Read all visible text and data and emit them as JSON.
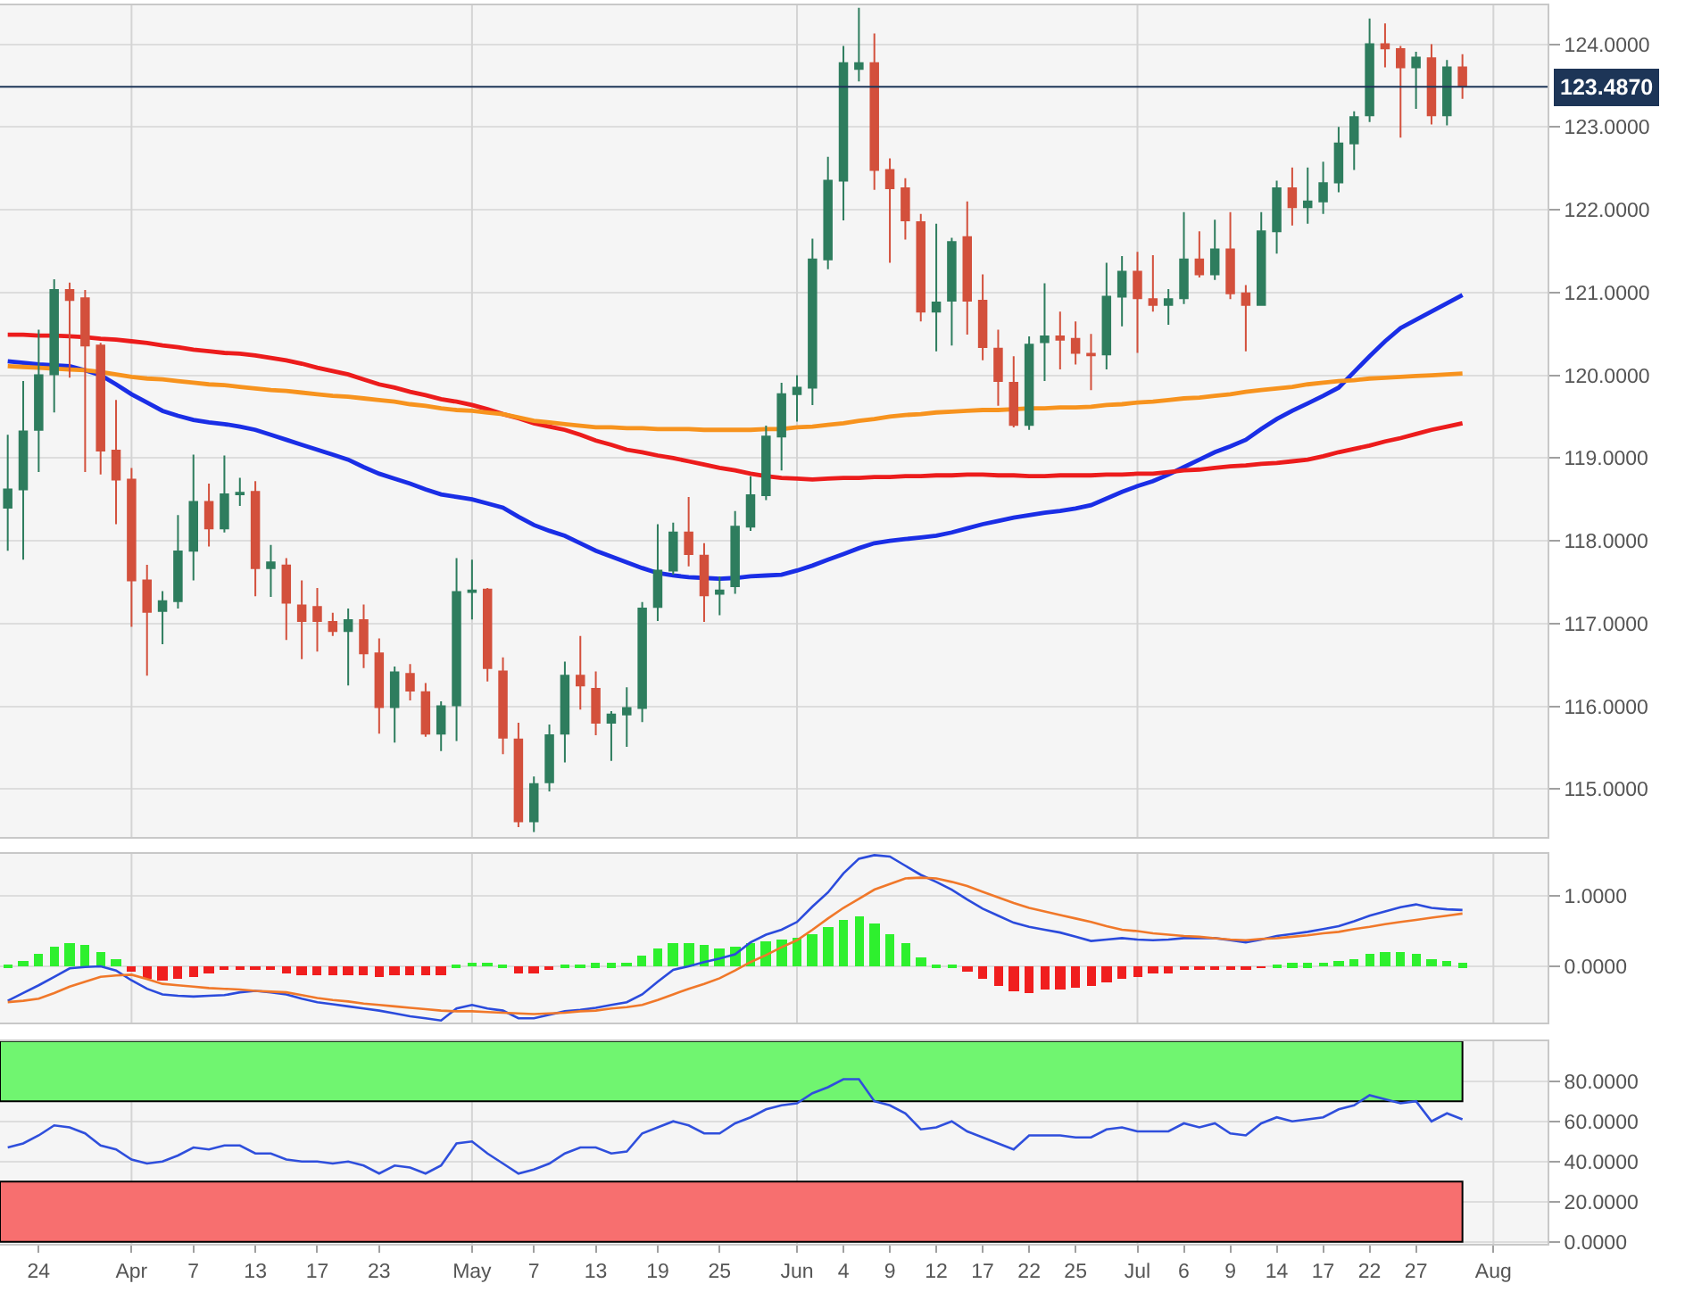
{
  "chart_data": [
    {
      "type": "candlestick",
      "categories": [
        null,
        null,
        "24",
        null,
        null,
        null,
        null,
        null,
        "Apr",
        null,
        null,
        null,
        "7",
        null,
        null,
        null,
        "13",
        null,
        null,
        null,
        "17",
        null,
        null,
        null,
        "23",
        null,
        null,
        null,
        null,
        null,
        "May",
        null,
        null,
        null,
        "7",
        null,
        null,
        null,
        "13",
        null,
        null,
        null,
        "19",
        null,
        null,
        null,
        "25",
        null,
        null,
        null,
        null,
        "Jun",
        null,
        null,
        "4",
        null,
        null,
        "9",
        null,
        null,
        "12",
        null,
        null,
        "17",
        null,
        null,
        "22",
        null,
        null,
        "25",
        null,
        null,
        null,
        "Jul",
        null,
        null,
        "6",
        null,
        null,
        "9",
        null,
        null,
        "14",
        null,
        null,
        "17",
        null,
        null,
        "22",
        null,
        null,
        "27",
        null,
        null,
        null,
        null,
        "Aug",
        null,
        null,
        null
      ],
      "ohlc": [
        [
          118.4,
          119.28,
          117.88,
          118.62
        ],
        [
          118.62,
          119.93,
          117.77,
          119.32
        ],
        [
          119.34,
          120.55,
          118.83,
          120.0
        ],
        [
          120.01,
          121.16,
          119.55,
          121.03
        ],
        [
          121.03,
          121.12,
          119.97,
          120.91
        ],
        [
          120.93,
          121.03,
          118.83,
          120.36
        ],
        [
          120.36,
          120.39,
          118.8,
          119.09
        ],
        [
          119.09,
          119.7,
          118.2,
          118.74
        ],
        [
          118.74,
          118.88,
          116.96,
          117.52
        ],
        [
          117.52,
          117.71,
          116.37,
          117.14
        ],
        [
          117.15,
          117.39,
          116.75,
          117.27
        ],
        [
          117.27,
          118.31,
          117.18,
          117.87
        ],
        [
          117.88,
          119.04,
          117.52,
          118.47
        ],
        [
          118.47,
          118.69,
          117.93,
          118.15
        ],
        [
          118.15,
          119.03,
          118.1,
          118.56
        ],
        [
          118.56,
          118.76,
          118.42,
          118.58
        ],
        [
          118.59,
          118.72,
          117.33,
          117.67
        ],
        [
          117.67,
          117.95,
          117.32,
          117.74
        ],
        [
          117.7,
          117.79,
          116.8,
          117.25
        ],
        [
          117.22,
          117.52,
          116.57,
          117.03
        ],
        [
          117.2,
          117.43,
          116.66,
          117.03
        ],
        [
          117.02,
          117.13,
          116.85,
          116.91
        ],
        [
          116.91,
          117.18,
          116.25,
          117.04
        ],
        [
          117.04,
          117.23,
          116.46,
          116.64
        ],
        [
          116.64,
          116.82,
          115.67,
          115.99
        ],
        [
          115.99,
          116.48,
          115.56,
          116.41
        ],
        [
          116.39,
          116.51,
          116.07,
          116.19
        ],
        [
          116.17,
          116.28,
          115.63,
          115.67
        ],
        [
          115.67,
          116.06,
          115.46,
          116.0
        ],
        [
          116.01,
          117.79,
          115.58,
          117.38
        ],
        [
          117.38,
          117.77,
          117.05,
          117.4
        ],
        [
          117.41,
          117.43,
          116.3,
          116.46
        ],
        [
          116.42,
          116.59,
          115.42,
          115.62
        ],
        [
          115.6,
          115.8,
          114.54,
          114.61
        ],
        [
          114.61,
          115.15,
          114.48,
          115.06
        ],
        [
          115.08,
          115.78,
          114.97,
          115.65
        ],
        [
          115.67,
          116.54,
          115.32,
          116.37
        ],
        [
          116.37,
          116.85,
          115.96,
          116.25
        ],
        [
          116.21,
          116.42,
          115.65,
          115.8
        ],
        [
          115.8,
          115.94,
          115.34,
          115.9
        ],
        [
          115.9,
          116.23,
          115.51,
          115.98
        ],
        [
          115.98,
          117.26,
          115.81,
          117.18
        ],
        [
          117.2,
          118.2,
          117.03,
          117.64
        ],
        [
          117.64,
          118.22,
          117.59,
          118.1
        ],
        [
          118.1,
          118.53,
          117.69,
          117.84
        ],
        [
          117.82,
          117.97,
          117.02,
          117.34
        ],
        [
          117.36,
          117.57,
          117.1,
          117.4
        ],
        [
          117.45,
          118.36,
          117.36,
          118.17
        ],
        [
          118.17,
          118.78,
          118.12,
          118.55
        ],
        [
          118.55,
          119.39,
          118.49,
          119.26
        ],
        [
          119.26,
          119.91,
          118.85,
          119.77
        ],
        [
          119.77,
          120.0,
          119.44,
          119.85
        ],
        [
          119.85,
          121.65,
          119.64,
          121.4
        ],
        [
          121.4,
          122.64,
          121.28,
          122.35
        ],
        [
          122.35,
          123.98,
          121.87,
          123.77
        ],
        [
          123.7,
          124.44,
          123.55,
          123.77
        ],
        [
          123.77,
          124.13,
          122.24,
          122.48
        ],
        [
          122.48,
          122.62,
          121.36,
          122.26
        ],
        [
          122.26,
          122.38,
          121.64,
          121.87
        ],
        [
          121.85,
          121.95,
          120.65,
          120.77
        ],
        [
          120.77,
          121.83,
          120.29,
          120.88
        ],
        [
          120.9,
          121.66,
          120.36,
          121.61
        ],
        [
          121.67,
          122.1,
          120.49,
          120.9
        ],
        [
          120.9,
          121.22,
          120.18,
          120.34
        ],
        [
          120.32,
          120.55,
          119.63,
          119.93
        ],
        [
          119.91,
          120.23,
          119.37,
          119.4
        ],
        [
          119.4,
          120.47,
          119.34,
          120.37
        ],
        [
          120.4,
          121.11,
          119.93,
          120.47
        ],
        [
          120.47,
          120.77,
          120.07,
          120.43
        ],
        [
          120.44,
          120.65,
          120.13,
          120.27
        ],
        [
          120.26,
          120.5,
          119.82,
          120.24
        ],
        [
          120.25,
          121.36,
          120.07,
          120.95
        ],
        [
          120.95,
          121.44,
          120.59,
          121.25
        ],
        [
          121.25,
          121.49,
          120.27,
          120.93
        ],
        [
          120.92,
          121.45,
          120.77,
          120.85
        ],
        [
          120.85,
          121.04,
          120.61,
          120.92
        ],
        [
          120.93,
          121.97,
          120.86,
          121.4
        ],
        [
          121.4,
          121.74,
          121.18,
          121.22
        ],
        [
          121.22,
          121.88,
          121.15,
          121.52
        ],
        [
          121.52,
          121.97,
          120.92,
          120.99
        ],
        [
          120.99,
          121.09,
          120.29,
          120.85
        ],
        [
          120.85,
          121.97,
          120.85,
          121.74
        ],
        [
          121.74,
          122.35,
          121.47,
          122.26
        ],
        [
          122.26,
          122.51,
          121.81,
          122.03
        ],
        [
          122.03,
          122.51,
          121.83,
          122.1
        ],
        [
          122.1,
          122.58,
          121.95,
          122.32
        ],
        [
          122.33,
          123.0,
          122.21,
          122.8
        ],
        [
          122.8,
          123.19,
          122.48,
          123.12
        ],
        [
          123.14,
          124.31,
          123.06,
          124.0
        ],
        [
          124.0,
          124.25,
          123.72,
          123.95
        ],
        [
          123.94,
          123.98,
          122.87,
          123.72
        ],
        [
          123.72,
          123.91,
          123.22,
          123.84
        ],
        [
          123.83,
          124.0,
          123.03,
          123.14
        ],
        [
          123.14,
          123.81,
          123.02,
          123.72
        ],
        [
          123.72,
          123.88,
          123.34,
          123.49
        ],
        null,
        null,
        null,
        null,
        null
      ],
      "colors": [
        "#2e7d5e",
        "#2e7d5e",
        "#2e7d5e",
        "#2e7d5e",
        "#d3503c",
        "#d3503c",
        "#d3503c",
        "#d3503c",
        "#d3503c",
        "#d3503c",
        "#2e7d5e",
        "#2e7d5e",
        "#2e7d5e",
        "#d3503c",
        "#2e7d5e",
        "#2e7d5e",
        "#d3503c",
        "#2e7d5e",
        "#d3503c",
        "#d3503c",
        "#d3503c",
        "#d3503c",
        "#2e7d5e",
        "#d3503c",
        "#d3503c",
        "#2e7d5e",
        "#d3503c",
        "#d3503c",
        "#2e7d5e",
        "#2e7d5e",
        "#2e7d5e",
        "#d3503c",
        "#d3503c",
        "#d3503c",
        "#2e7d5e",
        "#2e7d5e",
        "#2e7d5e",
        "#d3503c",
        "#d3503c",
        "#2e7d5e",
        "#2e7d5e",
        "#2e7d5e",
        "#2e7d5e",
        "#2e7d5e",
        "#d3503c",
        "#d3503c",
        "#2e7d5e",
        "#2e7d5e",
        "#2e7d5e",
        "#2e7d5e",
        "#2e7d5e",
        "#2e7d5e",
        "#2e7d5e",
        "#2e7d5e",
        "#2e7d5e",
        "#2e7d5e",
        "#d3503c",
        "#d3503c",
        "#d3503c",
        "#d3503c",
        "#2e7d5e",
        "#2e7d5e",
        "#d3503c",
        "#d3503c",
        "#d3503c",
        "#d3503c",
        "#2e7d5e",
        "#2e7d5e",
        "#d3503c",
        "#d3503c",
        "#d3503c",
        "#2e7d5e",
        "#2e7d5e",
        "#d3503c",
        "#d3503c",
        "#2e7d5e",
        "#2e7d5e",
        "#d3503c",
        "#2e7d5e",
        "#d3503c",
        "#d3503c",
        "#2e7d5e",
        "#2e7d5e",
        "#d3503c",
        "#2e7d5e",
        "#2e7d5e",
        "#2e7d5e",
        "#2e7d5e",
        "#2e7d5e",
        "#d3503c",
        "#d3503c",
        "#2e7d5e",
        "#d3503c",
        "#2e7d5e",
        "#d3503c",
        null,
        null,
        null,
        null,
        null
      ],
      "series": [
        {
          "type": "line",
          "color": "#1a2ee6",
          "values": [
            120.17,
            120.15,
            120.13,
            120.12,
            120.11,
            120.06,
            120.0,
            119.89,
            119.77,
            119.67,
            119.57,
            119.51,
            119.46,
            119.43,
            119.41,
            119.38,
            119.34,
            119.28,
            119.22,
            119.16,
            119.1,
            119.04,
            118.98,
            118.89,
            118.81,
            118.75,
            118.69,
            118.62,
            118.56,
            118.53,
            118.5,
            118.45,
            118.4,
            118.29,
            118.19,
            118.12,
            118.06,
            117.97,
            117.88,
            117.81,
            117.74,
            117.67,
            117.61,
            117.58,
            117.56,
            117.55,
            117.54,
            117.55,
            117.57,
            117.58,
            117.59,
            117.64,
            117.7,
            117.77,
            117.84,
            117.91,
            117.97,
            118.0,
            118.02,
            118.04,
            118.06,
            118.1,
            118.15,
            118.2,
            118.24,
            118.28,
            118.31,
            118.34,
            118.36,
            118.39,
            118.43,
            118.51,
            118.59,
            118.66,
            118.72,
            118.8,
            118.89,
            118.98,
            119.07,
            119.14,
            119.22,
            119.35,
            119.47,
            119.57,
            119.66,
            119.75,
            119.85,
            120.04,
            120.23,
            120.41,
            120.57,
            120.67,
            120.77,
            120.87,
            120.97,
            null,
            null,
            null,
            null,
            null
          ]
        },
        {
          "type": "line",
          "color": "#ec1c1c",
          "values": [
            120.49,
            120.49,
            120.48,
            120.48,
            120.47,
            120.46,
            120.44,
            120.43,
            120.41,
            120.39,
            120.36,
            120.34,
            120.31,
            120.29,
            120.27,
            120.26,
            120.24,
            120.21,
            120.18,
            120.14,
            120.09,
            120.05,
            120.01,
            119.95,
            119.89,
            119.85,
            119.8,
            119.76,
            119.71,
            119.68,
            119.64,
            119.59,
            119.53,
            119.48,
            119.42,
            119.38,
            119.34,
            119.28,
            119.21,
            119.16,
            119.1,
            119.07,
            119.03,
            119.0,
            118.96,
            118.92,
            118.88,
            118.85,
            118.81,
            118.78,
            118.76,
            118.75,
            118.74,
            118.75,
            118.76,
            118.76,
            118.77,
            118.77,
            118.78,
            118.78,
            118.79,
            118.79,
            118.8,
            118.8,
            118.79,
            118.79,
            118.78,
            118.78,
            118.79,
            118.79,
            118.79,
            118.8,
            118.8,
            118.81,
            118.81,
            118.83,
            118.85,
            118.86,
            118.88,
            118.9,
            118.91,
            118.93,
            118.94,
            118.96,
            118.98,
            119.02,
            119.07,
            119.11,
            119.15,
            119.2,
            119.24,
            119.29,
            119.34,
            119.38,
            119.42,
            null,
            null,
            null,
            null,
            null
          ]
        },
        {
          "type": "line",
          "color": "#f7931e",
          "values": [
            120.11,
            120.1,
            120.09,
            120.08,
            120.07,
            120.06,
            120.04,
            120.01,
            119.98,
            119.96,
            119.95,
            119.93,
            119.91,
            119.89,
            119.88,
            119.86,
            119.84,
            119.82,
            119.81,
            119.79,
            119.77,
            119.75,
            119.74,
            119.72,
            119.7,
            119.68,
            119.65,
            119.63,
            119.6,
            119.58,
            119.57,
            119.55,
            119.53,
            119.49,
            119.45,
            119.43,
            119.41,
            119.39,
            119.37,
            119.37,
            119.36,
            119.36,
            119.35,
            119.35,
            119.35,
            119.34,
            119.34,
            119.34,
            119.34,
            119.35,
            119.35,
            119.37,
            119.38,
            119.4,
            119.42,
            119.45,
            119.47,
            119.5,
            119.52,
            119.53,
            119.55,
            119.56,
            119.57,
            119.58,
            119.58,
            119.59,
            119.6,
            119.6,
            119.61,
            119.61,
            119.62,
            119.64,
            119.65,
            119.67,
            119.68,
            119.7,
            119.72,
            119.73,
            119.75,
            119.77,
            119.8,
            119.82,
            119.84,
            119.86,
            119.89,
            119.91,
            119.93,
            119.94,
            119.96,
            119.97,
            119.98,
            119.99,
            120.0,
            120.01,
            120.02,
            null,
            null,
            null,
            null,
            null
          ]
        }
      ],
      "ref_lines": [
        {
          "axis": "y",
          "value": 123.487,
          "label": "123.4870",
          "color": "#1d3557"
        },
        {
          "axis": "x",
          "value": "Apr",
          "color": "#d4d4d4"
        },
        {
          "axis": "x",
          "value": "May",
          "color": "#d4d4d4"
        },
        {
          "axis": "x",
          "value": "Jun",
          "color": "#d4d4d4"
        },
        {
          "axis": "x",
          "value": "Jul",
          "color": "#d4d4d4"
        },
        {
          "axis": "x",
          "value": "Aug",
          "color": "#d4d4d4"
        }
      ],
      "ylim": [
        114.42,
        124.47
      ],
      "yticks": [
        {
          "value": 115,
          "label": "115.0000"
        },
        {
          "value": 116,
          "label": "116.0000"
        },
        {
          "value": 117,
          "label": "117.0000"
        },
        {
          "value": 118,
          "label": "118.0000"
        },
        {
          "value": 119,
          "label": "119.0000"
        },
        {
          "value": 120,
          "label": "120.0000"
        },
        {
          "value": 121,
          "label": "121.0000"
        },
        {
          "value": 122,
          "label": "122.0000"
        },
        {
          "value": 123,
          "label": "123.0000"
        },
        {
          "value": 124,
          "label": "124.0000"
        }
      ],
      "grid": "y",
      "tick_labels": "y"
    },
    {
      "type": "bar",
      "categories": [
        null,
        null,
        "24",
        null,
        null,
        null,
        null,
        null,
        "Apr",
        null,
        null,
        null,
        "7",
        null,
        null,
        null,
        "13",
        null,
        null,
        null,
        "17",
        null,
        null,
        null,
        "23",
        null,
        null,
        null,
        null,
        null,
        "May",
        null,
        null,
        null,
        "7",
        null,
        null,
        null,
        "13",
        null,
        null,
        null,
        "19",
        null,
        null,
        null,
        "25",
        null,
        null,
        null,
        null,
        "Jun",
        null,
        null,
        "4",
        null,
        null,
        "9",
        null,
        null,
        "12",
        null,
        null,
        "17",
        null,
        null,
        "22",
        null,
        null,
        "25",
        null,
        null,
        null,
        "Jul",
        null,
        null,
        "6",
        null,
        null,
        "9",
        null,
        null,
        "14",
        null,
        null,
        "17",
        null,
        null,
        "22",
        null,
        null,
        "27",
        null,
        null,
        null,
        null,
        "Aug",
        null,
        null,
        null
      ],
      "series": [
        {
          "values": [
            0.02,
            0.08,
            0.17,
            0.29,
            0.34,
            0.31,
            0.2,
            0.11,
            -0.08,
            -0.17,
            -0.2,
            -0.17,
            -0.14,
            -0.09,
            -0.06,
            -0.03,
            -0.05,
            -0.06,
            -0.09,
            -0.12,
            -0.12,
            -0.12,
            -0.12,
            -0.12,
            -0.14,
            -0.12,
            -0.12,
            -0.12,
            -0.12,
            0.01,
            0.06,
            0.06,
            0.01,
            -0.09,
            -0.09,
            -0.06,
            0.01,
            0.03,
            0.05,
            0.05,
            0.06,
            0.15,
            0.25,
            0.32,
            0.34,
            0.31,
            0.25,
            0.28,
            0.32,
            0.35,
            0.38,
            0.4,
            0.46,
            0.57,
            0.66,
            0.71,
            0.6,
            0.46,
            0.34,
            0.14,
            0.02,
            0.01,
            -0.08,
            -0.17,
            -0.28,
            -0.35,
            -0.37,
            -0.34,
            -0.32,
            -0.31,
            -0.28,
            -0.23,
            -0.17,
            -0.14,
            -0.11,
            -0.09,
            -0.06,
            -0.05,
            -0.03,
            -0.03,
            -0.05,
            -0.02,
            0.03,
            0.05,
            0.05,
            0.06,
            0.08,
            0.11,
            0.17,
            0.2,
            0.2,
            0.17,
            0.11,
            0.08,
            0.05,
            null,
            null,
            null,
            null,
            null
          ],
          "colors": [
            "#2ef02e",
            "#2ef02e",
            "#2ef02e",
            "#2ef02e",
            "#2ef02e",
            "#2ef02e",
            "#2ef02e",
            "#2ef02e",
            "#f01e1e",
            "#f01e1e",
            "#f01e1e",
            "#f01e1e",
            "#f01e1e",
            "#f01e1e",
            "#f01e1e",
            "#f01e1e",
            "#f01e1e",
            "#f01e1e",
            "#f01e1e",
            "#f01e1e",
            "#f01e1e",
            "#f01e1e",
            "#f01e1e",
            "#f01e1e",
            "#f01e1e",
            "#f01e1e",
            "#f01e1e",
            "#f01e1e",
            "#f01e1e",
            "#2ef02e",
            "#2ef02e",
            "#2ef02e",
            "#2ef02e",
            "#f01e1e",
            "#f01e1e",
            "#f01e1e",
            "#2ef02e",
            "#2ef02e",
            "#2ef02e",
            "#2ef02e",
            "#2ef02e",
            "#2ef02e",
            "#2ef02e",
            "#2ef02e",
            "#2ef02e",
            "#2ef02e",
            "#2ef02e",
            "#2ef02e",
            "#2ef02e",
            "#2ef02e",
            "#2ef02e",
            "#2ef02e",
            "#2ef02e",
            "#2ef02e",
            "#2ef02e",
            "#2ef02e",
            "#2ef02e",
            "#2ef02e",
            "#2ef02e",
            "#2ef02e",
            "#2ef02e",
            "#2ef02e",
            "#f01e1e",
            "#f01e1e",
            "#f01e1e",
            "#f01e1e",
            "#f01e1e",
            "#f01e1e",
            "#f01e1e",
            "#f01e1e",
            "#f01e1e",
            "#f01e1e",
            "#f01e1e",
            "#f01e1e",
            "#f01e1e",
            "#f01e1e",
            "#f01e1e",
            "#f01e1e",
            "#f01e1e",
            "#f01e1e",
            "#f01e1e",
            "#f01e1e",
            "#2ef02e",
            "#2ef02e",
            "#2ef02e",
            "#2ef02e",
            "#2ef02e",
            "#2ef02e",
            "#2ef02e",
            "#2ef02e",
            "#2ef02e",
            "#2ef02e",
            "#2ef02e",
            "#2ef02e",
            "#2ef02e",
            null,
            null,
            null,
            null,
            null
          ]
        },
        {
          "type": "line",
          "color": "#2b4bdc",
          "values": [
            -0.49,
            -0.38,
            -0.27,
            -0.15,
            -0.03,
            -0.01,
            0.0,
            -0.06,
            -0.2,
            -0.32,
            -0.4,
            -0.42,
            -0.43,
            -0.42,
            -0.41,
            -0.37,
            -0.35,
            -0.37,
            -0.4,
            -0.46,
            -0.51,
            -0.54,
            -0.57,
            -0.6,
            -0.63,
            -0.67,
            -0.71,
            -0.74,
            -0.77,
            -0.6,
            -0.55,
            -0.6,
            -0.63,
            -0.74,
            -0.74,
            -0.69,
            -0.64,
            -0.62,
            -0.59,
            -0.55,
            -0.51,
            -0.4,
            -0.22,
            -0.05,
            0.0,
            0.06,
            0.11,
            0.17,
            0.34,
            0.45,
            0.52,
            0.63,
            0.85,
            1.05,
            1.32,
            1.53,
            1.58,
            1.56,
            1.43,
            1.3,
            1.2,
            1.09,
            0.95,
            0.82,
            0.72,
            0.62,
            0.56,
            0.52,
            0.48,
            0.42,
            0.36,
            0.38,
            0.4,
            0.38,
            0.37,
            0.38,
            0.4,
            0.4,
            0.4,
            0.37,
            0.34,
            0.38,
            0.43,
            0.46,
            0.49,
            0.53,
            0.57,
            0.64,
            0.72,
            0.78,
            0.84,
            0.88,
            0.83,
            0.81,
            0.8,
            null,
            null,
            null,
            null,
            null
          ]
        },
        {
          "type": "line",
          "color": "#f0782a",
          "values": [
            -0.51,
            -0.49,
            -0.46,
            -0.38,
            -0.29,
            -0.22,
            -0.15,
            -0.13,
            -0.12,
            -0.18,
            -0.25,
            -0.27,
            -0.29,
            -0.31,
            -0.32,
            -0.33,
            -0.35,
            -0.36,
            -0.37,
            -0.41,
            -0.45,
            -0.48,
            -0.5,
            -0.53,
            -0.55,
            -0.57,
            -0.59,
            -0.61,
            -0.63,
            -0.64,
            -0.64,
            -0.65,
            -0.66,
            -0.67,
            -0.68,
            -0.67,
            -0.66,
            -0.64,
            -0.63,
            -0.6,
            -0.58,
            -0.55,
            -0.48,
            -0.4,
            -0.32,
            -0.25,
            -0.17,
            -0.06,
            0.06,
            0.16,
            0.27,
            0.37,
            0.52,
            0.68,
            0.83,
            0.96,
            1.09,
            1.17,
            1.25,
            1.26,
            1.25,
            1.2,
            1.14,
            1.06,
            0.98,
            0.9,
            0.83,
            0.78,
            0.73,
            0.68,
            0.63,
            0.57,
            0.52,
            0.5,
            0.47,
            0.45,
            0.43,
            0.42,
            0.4,
            0.38,
            0.37,
            0.39,
            0.4,
            0.42,
            0.44,
            0.47,
            0.49,
            0.53,
            0.56,
            0.6,
            0.63,
            0.66,
            0.69,
            0.72,
            0.75,
            null,
            null,
            null,
            null,
            null
          ]
        }
      ],
      "ref_lines": [
        {
          "axis": "x",
          "value": "Apr",
          "color": "#d4d4d4"
        },
        {
          "axis": "x",
          "value": "May",
          "color": "#d4d4d4"
        },
        {
          "axis": "x",
          "value": "Jun",
          "color": "#d4d4d4"
        },
        {
          "axis": "x",
          "value": "Jul",
          "color": "#d4d4d4"
        },
        {
          "axis": "x",
          "value": "Aug",
          "color": "#d4d4d4"
        }
      ],
      "ylim": [
        -0.8,
        1.6
      ],
      "yticks": [
        {
          "value": 0,
          "label": "0.0000"
        },
        {
          "value": 1,
          "label": "1.0000"
        }
      ],
      "grid": "y",
      "tick_labels": "y"
    },
    {
      "type": "line",
      "categories": [
        null,
        null,
        "24",
        null,
        null,
        null,
        null,
        null,
        "Apr",
        null,
        null,
        null,
        "7",
        null,
        null,
        null,
        "13",
        null,
        null,
        null,
        "17",
        null,
        null,
        null,
        "23",
        null,
        null,
        null,
        null,
        null,
        "May",
        null,
        null,
        null,
        "7",
        null,
        null,
        null,
        "13",
        null,
        null,
        null,
        "19",
        null,
        null,
        null,
        "25",
        null,
        null,
        null,
        null,
        "Jun",
        null,
        null,
        "4",
        null,
        null,
        "9",
        null,
        null,
        "12",
        null,
        null,
        "17",
        null,
        null,
        "22",
        null,
        null,
        "25",
        null,
        null,
        null,
        "Jul",
        null,
        null,
        "6",
        null,
        null,
        "9",
        null,
        null,
        "14",
        null,
        null,
        "17",
        null,
        null,
        "22",
        null,
        null,
        "27",
        null,
        null,
        null,
        null,
        "Aug",
        null,
        null,
        null
      ],
      "values": [
        47,
        49,
        53,
        58,
        57,
        54,
        48,
        46,
        41,
        39,
        40,
        43,
        47,
        46,
        48,
        48,
        44,
        44,
        41,
        40,
        40,
        39,
        40,
        38,
        34,
        38,
        37,
        34,
        38,
        49,
        50,
        44,
        39,
        34,
        36,
        39,
        44,
        47,
        47,
        44,
        45,
        54,
        57,
        60,
        58,
        54,
        54,
        59,
        62,
        66,
        68,
        69,
        74,
        77,
        81,
        81,
        70,
        68,
        64,
        56,
        57,
        60,
        55,
        52,
        49,
        46,
        53,
        53,
        53,
        52,
        52,
        56,
        57,
        55,
        55,
        55,
        59,
        57,
        59,
        54,
        53,
        59,
        62,
        60,
        61,
        62,
        66,
        68,
        73,
        71,
        69,
        70,
        60,
        64,
        61,
        null,
        null,
        null,
        null,
        null
      ],
      "color": "#2f4fdc",
      "bands": [
        {
          "axis": "y",
          "from": 70,
          "to": 100,
          "color": "#70f570"
        },
        {
          "axis": "y",
          "from": 0,
          "to": 30,
          "color": "#f76f6f"
        }
      ],
      "ref_lines": [
        {
          "axis": "x",
          "value": "Apr",
          "color": "#d4d4d4"
        },
        {
          "axis": "x",
          "value": "May",
          "color": "#d4d4d4"
        },
        {
          "axis": "x",
          "value": "Jun",
          "color": "#d4d4d4"
        },
        {
          "axis": "x",
          "value": "Jul",
          "color": "#d4d4d4"
        },
        {
          "axis": "x",
          "value": "Aug",
          "color": "#d4d4d4"
        }
      ],
      "ylim": [
        -1,
        100
      ],
      "yticks": [
        {
          "value": 0,
          "label": "0.0000"
        },
        {
          "value": 20,
          "label": "20.0000"
        },
        {
          "value": 40,
          "label": "40.0000"
        },
        {
          "value": 60,
          "label": "60.0000"
        },
        {
          "value": 80,
          "label": "80.0000"
        }
      ],
      "grid": "y"
    }
  ]
}
